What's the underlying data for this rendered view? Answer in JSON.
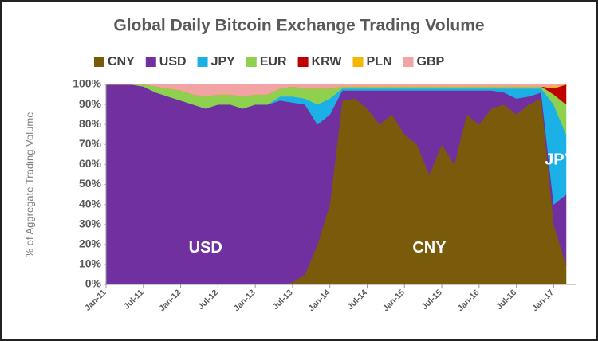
{
  "chart_data": {
    "type": "stacked-area",
    "title": "Global Daily Bitcoin Exchange Trading Volume",
    "y_label": "% of Aggregate Trading Volume",
    "annotations": [
      "USD",
      "CNY",
      "JPY"
    ],
    "categories": [
      "Jan-11",
      null,
      null,
      "Jul-11",
      null,
      null,
      "Jan-12",
      null,
      null,
      "Jul-12",
      null,
      null,
      "Jan-13",
      null,
      null,
      "Jul-13",
      null,
      null,
      "Jan-14",
      null,
      null,
      "Jul-14",
      null,
      null,
      "Jan-15",
      null,
      null,
      "Jul-15",
      null,
      null,
      "Jan-16",
      null,
      null,
      "Jul-16",
      null,
      null,
      "Jan-17",
      null
    ],
    "series": [
      {
        "name": "CNY",
        "color": "#7a5a0b",
        "values": [
          0,
          0,
          0,
          0,
          0,
          0,
          0,
          0,
          0,
          0,
          0,
          0,
          0,
          0,
          0,
          1,
          5,
          20,
          40,
          92,
          93,
          88,
          80,
          85,
          75,
          70,
          55,
          70,
          60,
          85,
          80,
          88,
          90,
          85,
          90,
          93,
          30,
          10
        ]
      },
      {
        "name": "USD",
        "color": "#7030a0",
        "values": [
          100,
          100,
          100,
          99,
          96,
          94,
          92,
          90,
          88,
          90,
          90,
          88,
          90,
          90,
          92,
          90,
          85,
          60,
          45,
          5,
          4,
          9,
          17,
          12,
          22,
          27,
          42,
          27,
          37,
          12,
          17,
          9,
          6,
          8,
          4,
          3,
          10,
          35
        ]
      },
      {
        "name": "JPY",
        "color": "#1cb1e6",
        "values": [
          0,
          0,
          0,
          0,
          0,
          0,
          0,
          0,
          0,
          0,
          0,
          0,
          0,
          0,
          2,
          3,
          3,
          10,
          8,
          1,
          1,
          1,
          1,
          1,
          1,
          1,
          1,
          1,
          1,
          1,
          1,
          1,
          2,
          5,
          4,
          2,
          50,
          30
        ]
      },
      {
        "name": "EUR",
        "color": "#8fd14f",
        "values": [
          0,
          0,
          0,
          1,
          3,
          4,
          5,
          5,
          6,
          5,
          5,
          6,
          5,
          5,
          4,
          5,
          5,
          8,
          5,
          1,
          1,
          1,
          1,
          1,
          1,
          1,
          1,
          1,
          1,
          1,
          1,
          1,
          1,
          1,
          1,
          1,
          5,
          15
        ]
      },
      {
        "name": "KRW",
        "color": "#c00000",
        "values": [
          0,
          0,
          0,
          0,
          0,
          0,
          0,
          0,
          0,
          0,
          0,
          0,
          0,
          0,
          0,
          0,
          0,
          0,
          0,
          0,
          0,
          0,
          0,
          0,
          0,
          0,
          0,
          0,
          0,
          0,
          0,
          0,
          0,
          0,
          0,
          0,
          3,
          10
        ]
      },
      {
        "name": "PLN",
        "color": "#f5b800",
        "values": [
          0,
          0,
          0,
          0,
          0,
          0,
          0,
          0,
          0,
          0,
          0,
          0,
          0,
          0,
          0,
          0,
          0,
          0,
          0,
          0,
          0,
          0,
          0,
          0,
          0,
          0,
          0,
          0,
          0,
          0,
          0,
          0,
          0,
          0,
          0,
          0,
          1,
          0
        ]
      },
      {
        "name": "GBP",
        "color": "#f2a3a3",
        "values": [
          0,
          0,
          0,
          0,
          1,
          2,
          3,
          5,
          6,
          5,
          5,
          6,
          5,
          5,
          2,
          1,
          2,
          2,
          2,
          1,
          1,
          1,
          1,
          1,
          1,
          1,
          1,
          1,
          1,
          1,
          1,
          1,
          1,
          1,
          1,
          1,
          1,
          0
        ]
      }
    ],
    "ylim": [
      0,
      100
    ],
    "yticks": [
      {
        "value": 0,
        "label": "0%"
      },
      {
        "value": 10,
        "label": "10%"
      },
      {
        "value": 20,
        "label": "20%"
      },
      {
        "value": 30,
        "label": "30%"
      },
      {
        "value": 40,
        "label": "40%"
      },
      {
        "value": 50,
        "label": "50%"
      },
      {
        "value": 60,
        "label": "60%"
      },
      {
        "value": 70,
        "label": "70%"
      },
      {
        "value": 80,
        "label": "80%"
      },
      {
        "value": 90,
        "label": "90%"
      },
      {
        "value": 100,
        "label": "100%"
      }
    ]
  }
}
